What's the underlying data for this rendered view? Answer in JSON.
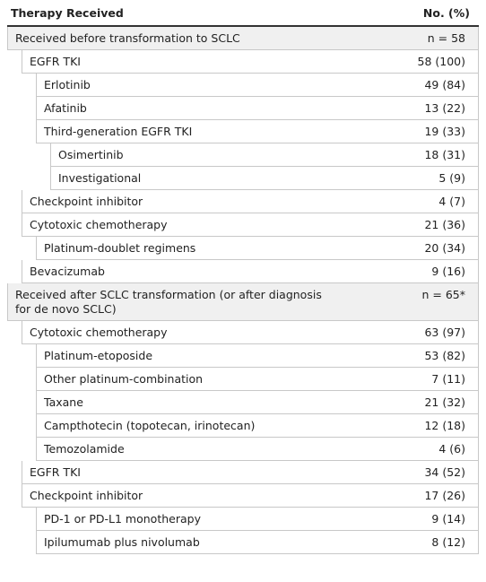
{
  "header": {
    "label": "Therapy Received",
    "value": "No. (%)"
  },
  "sections": [
    {
      "label": "Received before transformation to SCLC",
      "value": "n = 58",
      "items": [
        {
          "label": "EGFR TKI",
          "value": "58 (100)",
          "items": [
            {
              "label": "Erlotinib",
              "value": "49 (84)"
            },
            {
              "label": "Afatinib",
              "value": "13 (22)"
            },
            {
              "label": "Third-generation EGFR TKI",
              "value": "19 (33)",
              "items": [
                {
                  "label": "Osimertinib",
                  "value": "18 (31)"
                },
                {
                  "label": "Investigational",
                  "value": "5 (9)"
                }
              ]
            }
          ]
        },
        {
          "label": "Checkpoint inhibitor",
          "value": "4 (7)"
        },
        {
          "label": "Cytotoxic chemotherapy",
          "value": "21 (36)",
          "items": [
            {
              "label": "Platinum-doublet regimens",
              "value": "20 (34)"
            }
          ]
        },
        {
          "label": "Bevacizumab",
          "value": "9 (16)"
        }
      ]
    },
    {
      "label": "Received after SCLC transformation (or after diagnosis for de novo SCLC)",
      "value": "n = 65*",
      "items": [
        {
          "label": "Cytotoxic chemotherapy",
          "value": "63 (97)",
          "items": [
            {
              "label": "Platinum-etoposide",
              "value": "53 (82)"
            },
            {
              "label": "Other platinum-combination",
              "value": "7 (11)"
            },
            {
              "label": "Taxane",
              "value": "21 (32)"
            },
            {
              "label": "Campthotecin (topotecan, irinotecan)",
              "value": "12 (18)"
            },
            {
              "label": "Temozolamide",
              "value": "4 (6)"
            }
          ]
        },
        {
          "label": "EGFR TKI",
          "value": "34 (52)"
        },
        {
          "label": "Checkpoint inhibitor",
          "value": "17 (26)",
          "items": [
            {
              "label": "PD-1 or PD-L1 monotherapy",
              "value": "9 (14)"
            },
            {
              "label": "Ipilumumab plus nivolumab",
              "value": "8 (12)"
            }
          ]
        }
      ]
    }
  ]
}
